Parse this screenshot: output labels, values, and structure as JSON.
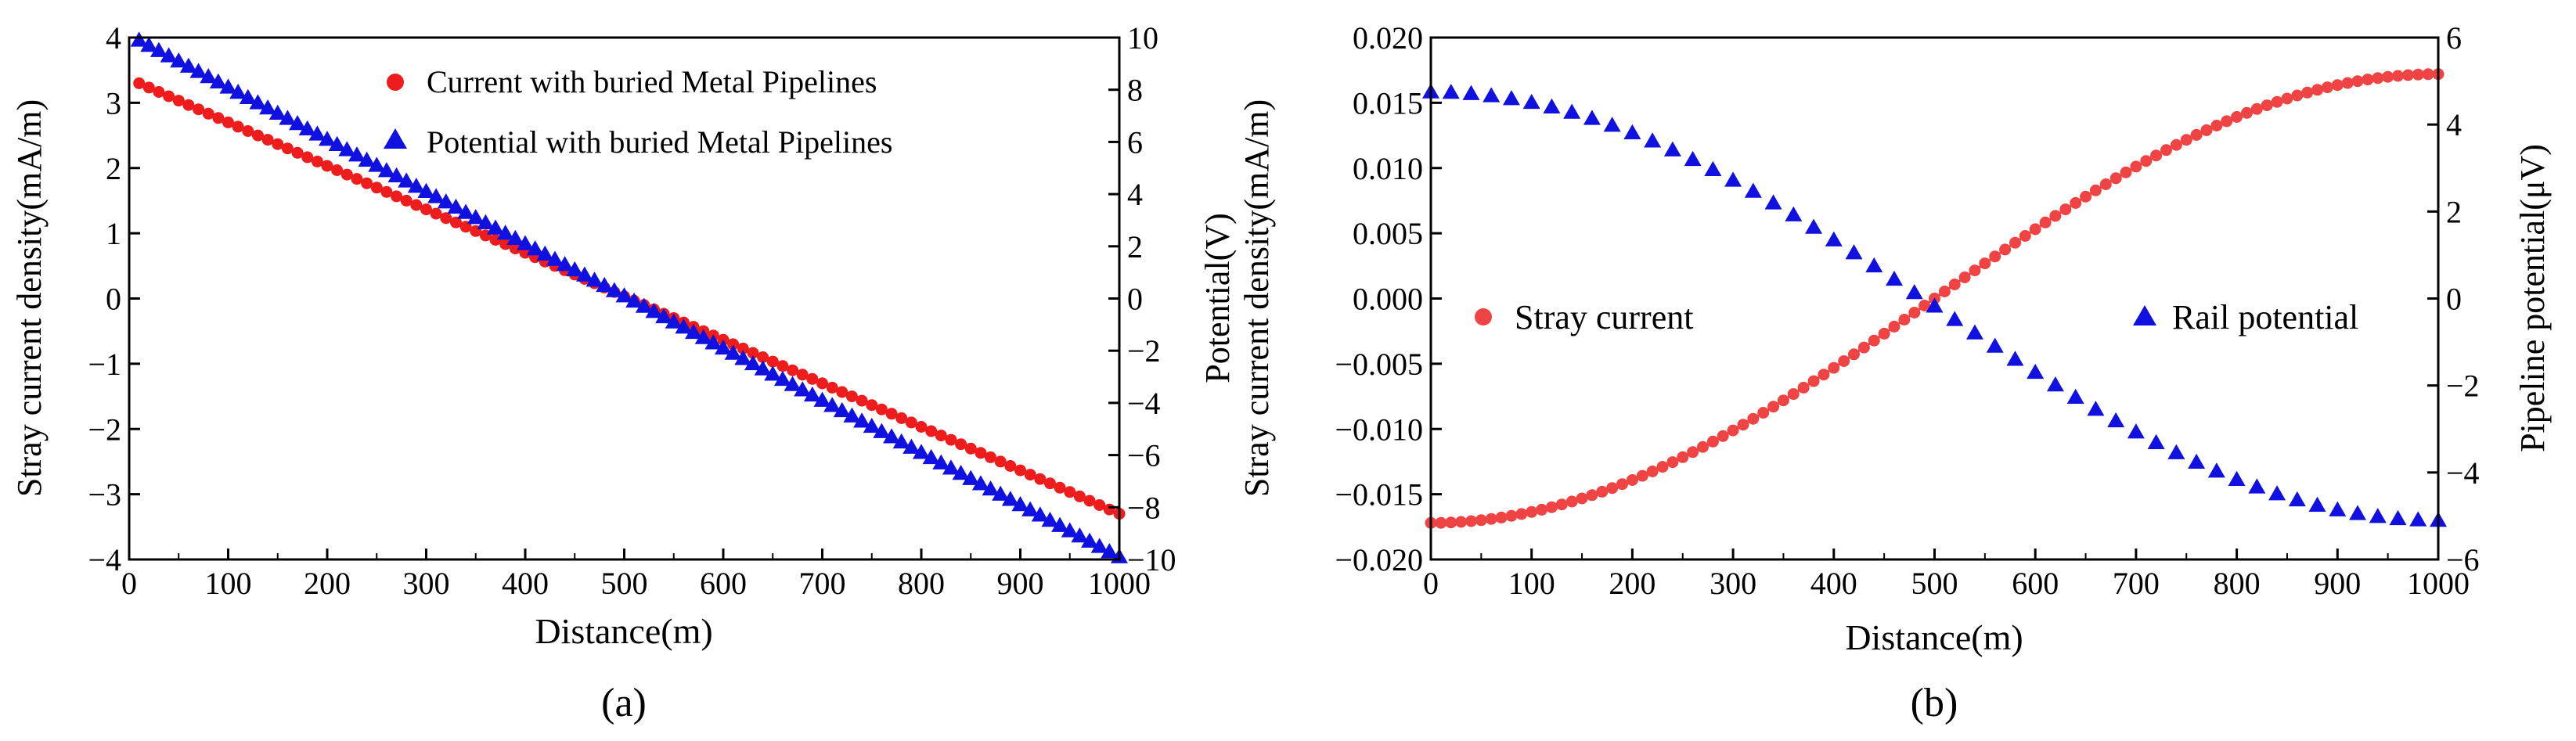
{
  "chart_data": [
    {
      "type": "scatter",
      "panel_label": "(a)",
      "xlabel": "Distance(m)",
      "ylabel_left": "Stray current density(mA/m)",
      "ylabel_right": "Potential(V)",
      "xlim": [
        0,
        1000
      ],
      "ylim_left": [
        -4,
        4
      ],
      "ylim_right": [
        -10,
        10
      ],
      "x_ticks": [
        "0",
        "100",
        "200",
        "300",
        "400",
        "500",
        "600",
        "700",
        "800",
        "900",
        "1000"
      ],
      "y_ticks_left": [
        "4",
        "3",
        "2",
        "1",
        "0",
        "−1",
        "−2",
        "−3",
        "−4"
      ],
      "y_ticks_right": [
        "10",
        "8",
        "6",
        "4",
        "2",
        "0",
        "−2",
        "−4",
        "−6",
        "−8",
        "−10"
      ],
      "legend_position": "top-right",
      "series": [
        {
          "name": "Current with buried Metal Pipelines",
          "axis": "left",
          "marker": "circle",
          "color": "#ee1c1c",
          "x_start": 10,
          "x_end": 1000,
          "x_step": 10,
          "y_start": 3.3,
          "y_end": -3.3,
          "shape": "linear"
        },
        {
          "name": "Potential with buried Metal Pipelines",
          "axis": "right",
          "marker": "triangle",
          "color": "#1010e0",
          "x_start": 10,
          "x_end": 1000,
          "x_step": 10,
          "y_start": 9.9,
          "y_end": -9.9,
          "shape": "linear"
        }
      ]
    },
    {
      "type": "scatter",
      "panel_label": "(b)",
      "xlabel": "Distance(m)",
      "ylabel_left": "Stray current density(mA/m)",
      "ylabel_right": "Pipeline potential(μV)",
      "xlim": [
        0,
        1000
      ],
      "ylim_left": [
        -0.02,
        0.02
      ],
      "ylim_right": [
        -6,
        6
      ],
      "x_ticks": [
        "0",
        "100",
        "200",
        "300",
        "400",
        "500",
        "600",
        "700",
        "800",
        "900",
        "1000"
      ],
      "y_ticks_left": [
        "0.020",
        "0.015",
        "0.010",
        "0.005",
        "0.000",
        "−0.005",
        "−0.010",
        "−0.015",
        "−0.020"
      ],
      "y_ticks_right": [
        "6",
        "4",
        "2",
        "0",
        "−2",
        "−4",
        "−6"
      ],
      "legend_position": "middle",
      "series": [
        {
          "name": "Stray current",
          "axis": "left",
          "marker": "circle",
          "color": "#f04444",
          "x_start": 0,
          "x_end": 1000,
          "x_step": 10,
          "y_start": -0.0172,
          "y_end": 0.0172,
          "shape": "sine",
          "with_line": true
        },
        {
          "name": "Rail potential",
          "axis": "right",
          "marker": "triangle",
          "color": "#1010e0",
          "x_start": 0,
          "x_end": 1000,
          "x_step": 20,
          "y_start": 4.75,
          "y_end": -5.1,
          "shape": "cosine"
        }
      ]
    }
  ]
}
